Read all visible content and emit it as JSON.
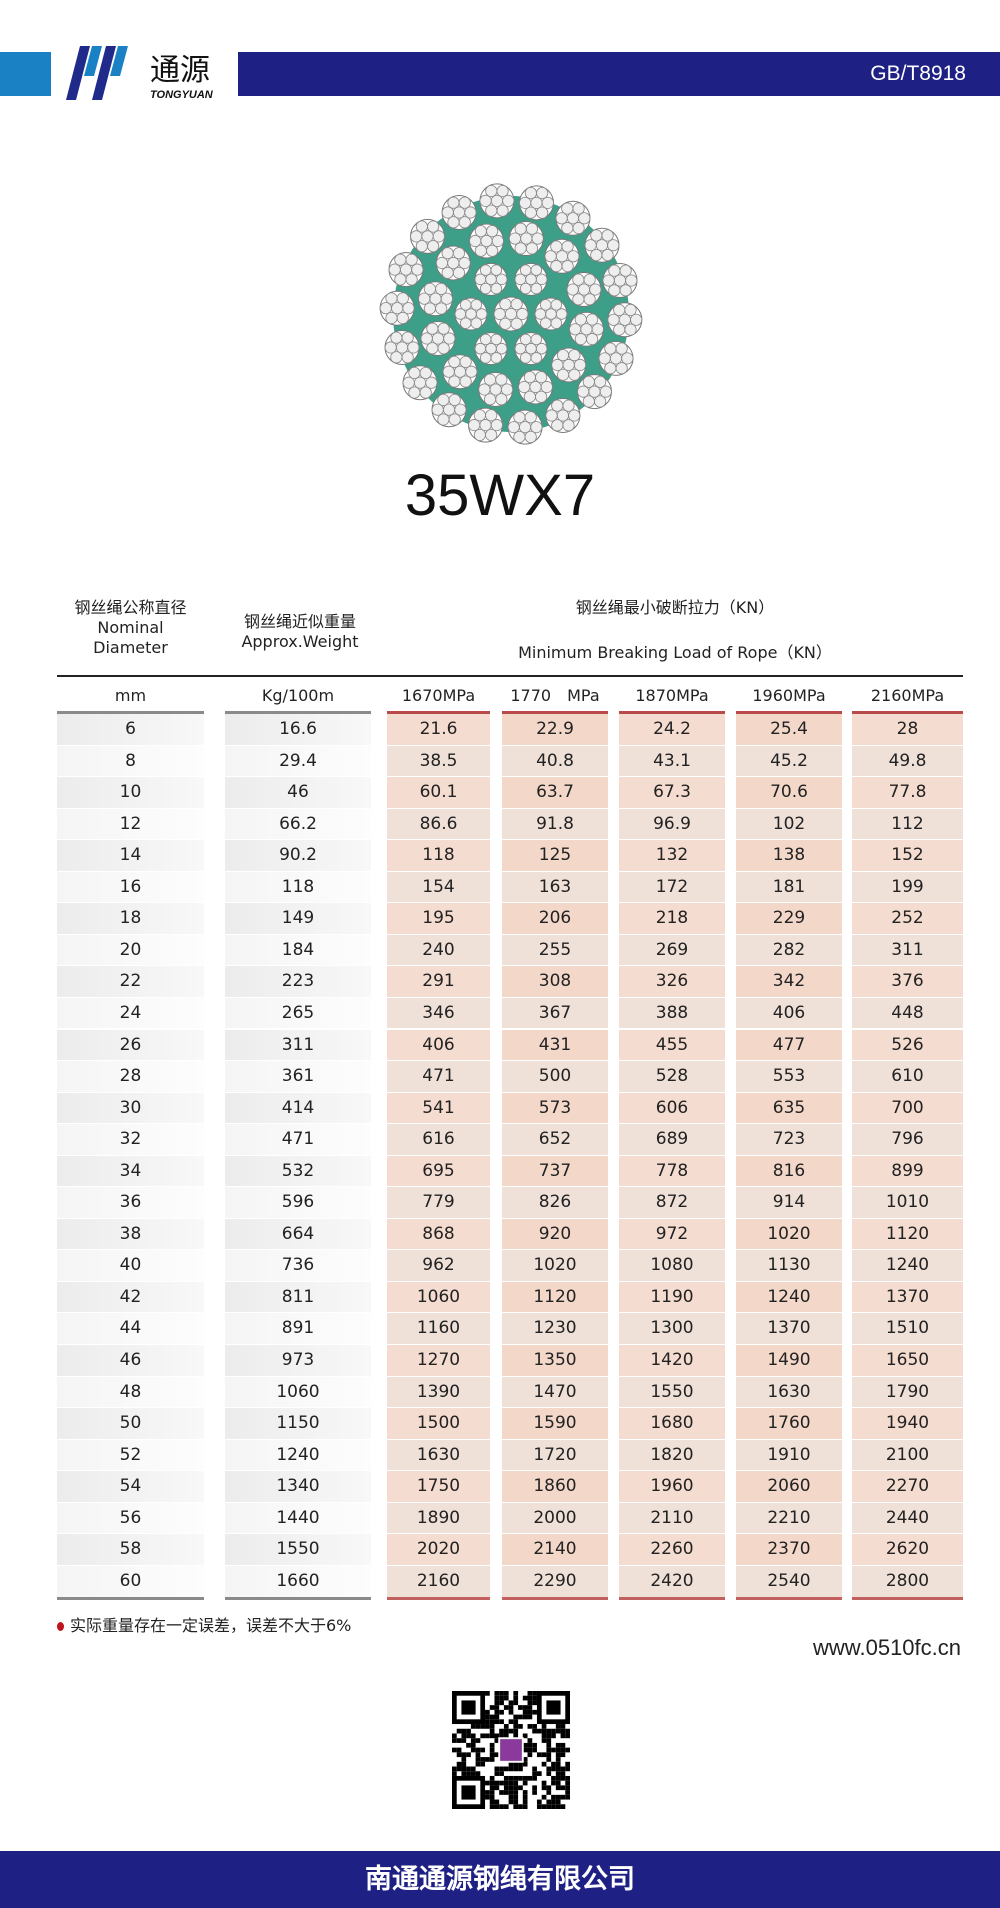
{
  "header": {
    "logo_text_cn": "通源",
    "logo_text_en": "TONGYUAN",
    "standard": "GB/T8918",
    "brand_dark": "#1f2084",
    "brand_light": "#1a82c4"
  },
  "product": {
    "title": "35WX7"
  },
  "table": {
    "head": {
      "diameter_cn": "钢丝绳公称直径",
      "diameter_en1": "Nominal",
      "diameter_en2": "Diameter",
      "weight_cn": "钢丝绳近似重量",
      "weight_en": "Approx.Weight",
      "load_cn": "钢丝绳最小破断拉力（KN）",
      "load_en": "Minimum Breaking Load of Rope（KN）"
    },
    "units": [
      "mm",
      "Kg/100m",
      "1670MPa",
      "1770　MPa",
      "1870MPa",
      "1960MPa",
      "2160MPa"
    ],
    "rows": [
      [
        "6",
        "16.6",
        "21.6",
        "22.9",
        "24.2",
        "25.4",
        "28"
      ],
      [
        "8",
        "29.4",
        "38.5",
        "40.8",
        "43.1",
        "45.2",
        "49.8"
      ],
      [
        "10",
        "46",
        "60.1",
        "63.7",
        "67.3",
        "70.6",
        "77.8"
      ],
      [
        "12",
        "66.2",
        "86.6",
        "91.8",
        "96.9",
        "102",
        "112"
      ],
      [
        "14",
        "90.2",
        "118",
        "125",
        "132",
        "138",
        "152"
      ],
      [
        "16",
        "118",
        "154",
        "163",
        "172",
        "181",
        "199"
      ],
      [
        "18",
        "149",
        "195",
        "206",
        "218",
        "229",
        "252"
      ],
      [
        "20",
        "184",
        "240",
        "255",
        "269",
        "282",
        "311"
      ],
      [
        "22",
        "223",
        "291",
        "308",
        "326",
        "342",
        "376"
      ],
      [
        "24",
        "265",
        "346",
        "367",
        "388",
        "406",
        "448"
      ],
      [
        "26",
        "311",
        "406",
        "431",
        "455",
        "477",
        "526"
      ],
      [
        "28",
        "361",
        "471",
        "500",
        "528",
        "553",
        "610"
      ],
      [
        "30",
        "414",
        "541",
        "573",
        "606",
        "635",
        "700"
      ],
      [
        "32",
        "471",
        "616",
        "652",
        "689",
        "723",
        "796"
      ],
      [
        "34",
        "532",
        "695",
        "737",
        "778",
        "816",
        "899"
      ],
      [
        "36",
        "596",
        "779",
        "826",
        "872",
        "914",
        "1010"
      ],
      [
        "38",
        "664",
        "868",
        "920",
        "972",
        "1020",
        "1120"
      ],
      [
        "40",
        "736",
        "962",
        "1020",
        "1080",
        "1130",
        "1240"
      ],
      [
        "42",
        "811",
        "1060",
        "1120",
        "1190",
        "1240",
        "1370"
      ],
      [
        "44",
        "891",
        "1160",
        "1230",
        "1300",
        "1370",
        "1510"
      ],
      [
        "46",
        "973",
        "1270",
        "1350",
        "1420",
        "1490",
        "1650"
      ],
      [
        "48",
        "1060",
        "1390",
        "1470",
        "1550",
        "1630",
        "1790"
      ],
      [
        "50",
        "1150",
        "1500",
        "1590",
        "1680",
        "1760",
        "1940"
      ],
      [
        "52",
        "1240",
        "1630",
        "1720",
        "1820",
        "1910",
        "2100"
      ],
      [
        "54",
        "1340",
        "1750",
        "1860",
        "1960",
        "2060",
        "2270"
      ],
      [
        "56",
        "1440",
        "1890",
        "2000",
        "2110",
        "2210",
        "2440"
      ],
      [
        "58",
        "1550",
        "2020",
        "2140",
        "2260",
        "2370",
        "2620"
      ],
      [
        "60",
        "1660",
        "2160",
        "2290",
        "2420",
        "2540",
        "2800"
      ]
    ]
  },
  "note": "实际重量存在一定误差，误差不大于6%",
  "website": "www.0510fc.cn",
  "footer": {
    "company": "南通通源钢绳有限公司"
  }
}
